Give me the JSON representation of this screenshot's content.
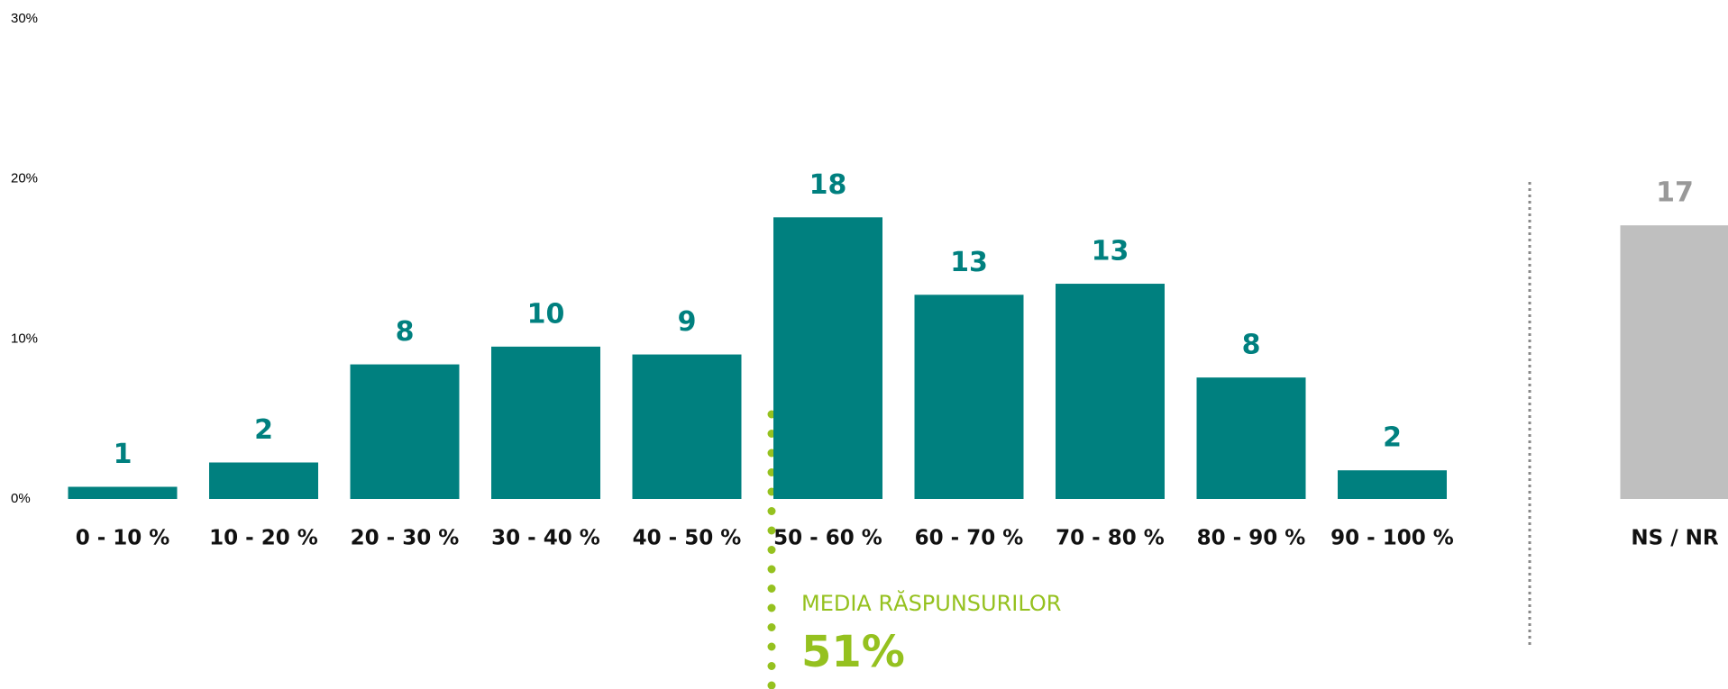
{
  "chart_data": {
    "type": "bar",
    "categories": [
      "0 - 10 %",
      "10 - 20 %",
      "20 - 30 %",
      "30 - 40 %",
      "40 - 50 %",
      "50 - 60 %",
      "60 - 70 %",
      "70 - 80 %",
      "80 - 90 %",
      "90 - 100 %",
      "NS / NR"
    ],
    "values": [
      0.76,
      2.28,
      8.41,
      9.52,
      9.03,
      17.6,
      12.76,
      13.45,
      7.59,
      1.79,
      17.1
    ],
    "value_labels": [
      "1",
      "2",
      "8",
      "10",
      "9",
      "18",
      "13",
      "13",
      "8",
      "2",
      "17"
    ],
    "colors": [
      "#00807f",
      "#00807f",
      "#00807f",
      "#00807f",
      "#00807f",
      "#00807f",
      "#00807f",
      "#00807f",
      "#00807f",
      "#00807f",
      "#bfbfbf"
    ],
    "label_colors": [
      "#00807f",
      "#00807f",
      "#00807f",
      "#00807f",
      "#00807f",
      "#00807f",
      "#00807f",
      "#00807f",
      "#00807f",
      "#00807f",
      "#999999"
    ],
    "ylim": [
      0,
      30
    ],
    "yticks": [
      {
        "value": 0,
        "label": "0%"
      },
      {
        "value": 10,
        "label": "10%"
      },
      {
        "value": 20,
        "label": "20%"
      },
      {
        "value": 30,
        "label": "30%"
      }
    ],
    "annotation": {
      "title": "MEDIA RĂSPUNSURILOR",
      "text": "51%",
      "color": "#95c11f"
    }
  }
}
